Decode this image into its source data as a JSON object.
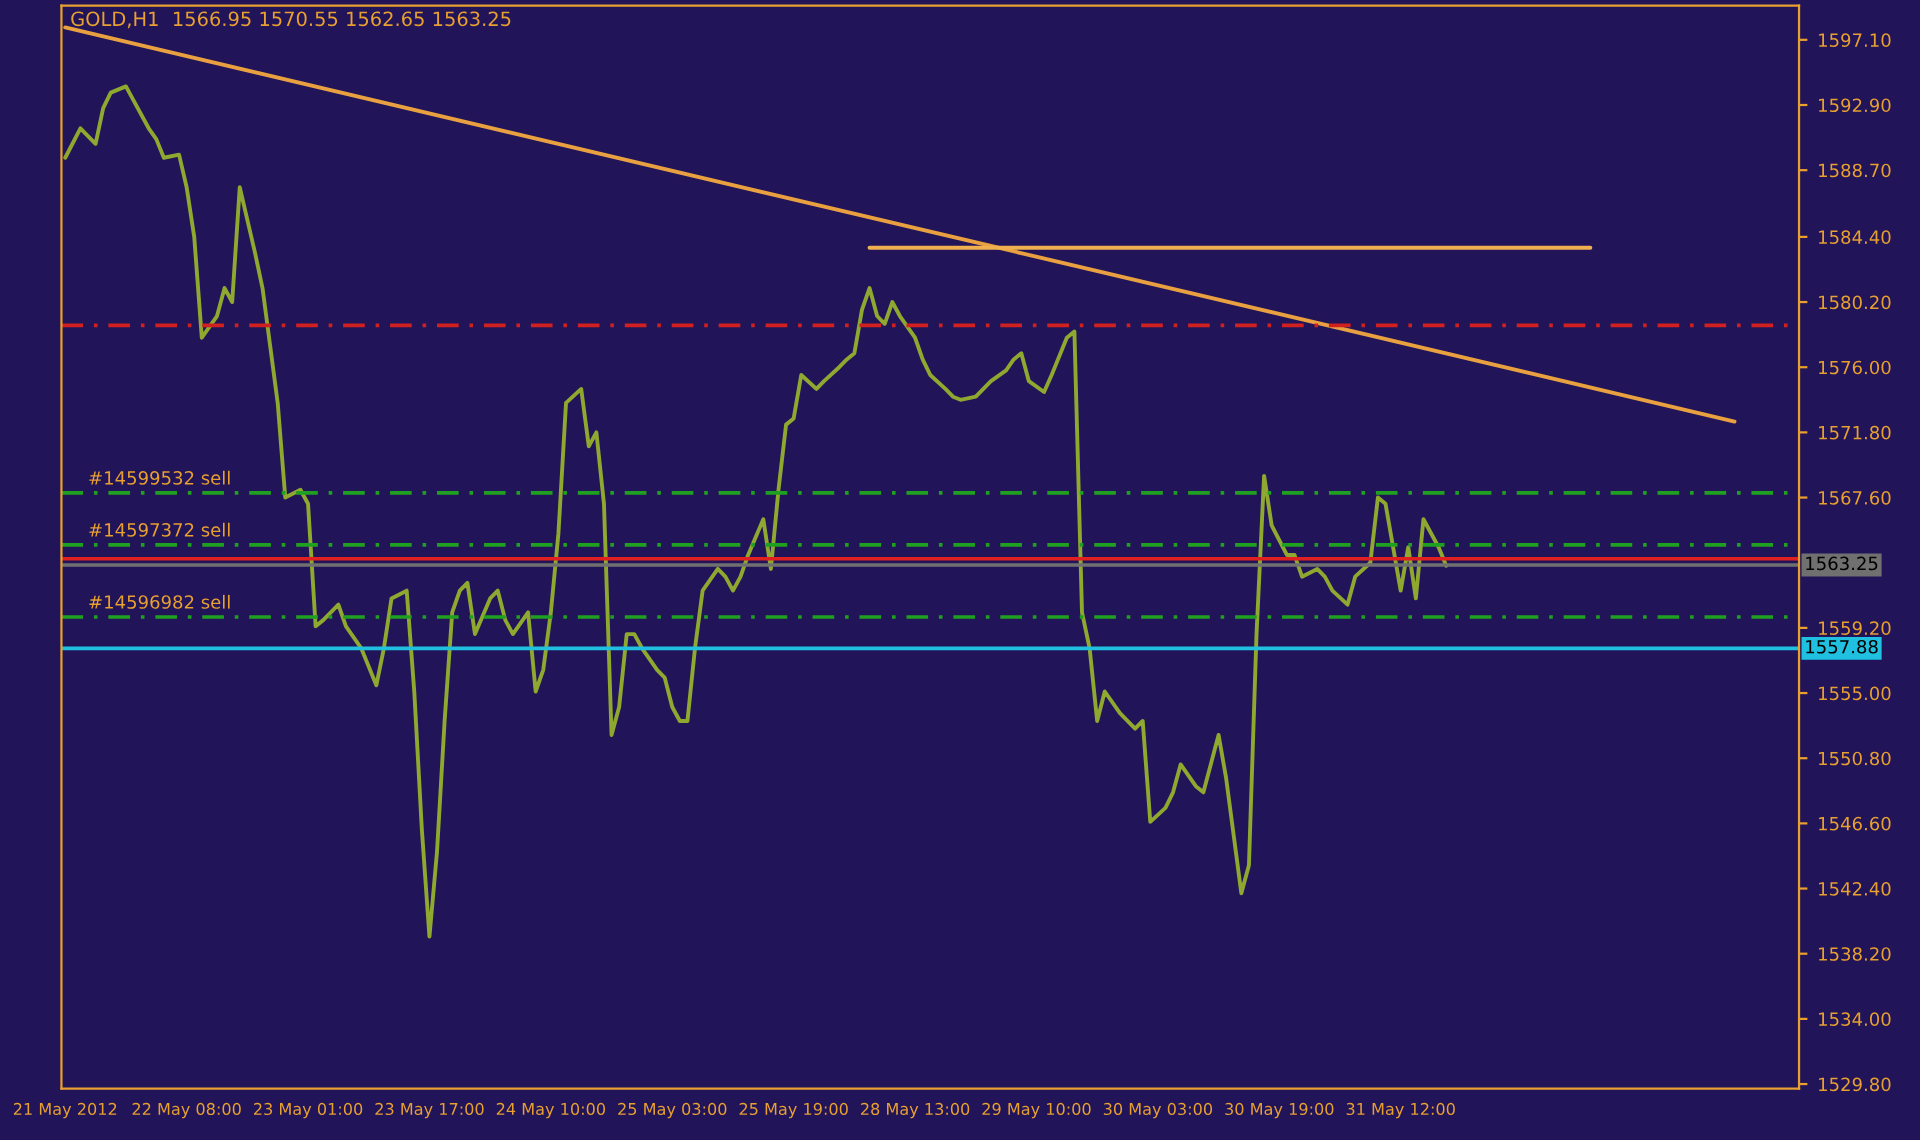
{
  "chart_data": {
    "type": "line",
    "title": "GOLD,H1  1566.95 1570.55 1562.65 1563.25",
    "categories": [
      "21 May 2012",
      null,
      null,
      null,
      null,
      null,
      null,
      null,
      null,
      null,
      null,
      null,
      null,
      null,
      null,
      null,
      "22 May 08:00",
      null,
      null,
      null,
      null,
      null,
      null,
      null,
      null,
      null,
      null,
      null,
      null,
      null,
      null,
      null,
      "23 May 01:00",
      null,
      null,
      null,
      null,
      null,
      null,
      null,
      null,
      null,
      null,
      null,
      null,
      null,
      null,
      null,
      "23 May 17:00",
      null,
      null,
      null,
      null,
      null,
      null,
      null,
      null,
      null,
      null,
      null,
      null,
      null,
      null,
      null,
      "24 May 10:00",
      null,
      null,
      null,
      null,
      null,
      null,
      null,
      null,
      null,
      null,
      null,
      null,
      null,
      null,
      null,
      "25 May 03:00",
      null,
      null,
      null,
      null,
      null,
      null,
      null,
      null,
      null,
      null,
      null,
      null,
      null,
      null,
      null,
      "25 May 19:00",
      null,
      null,
      null,
      null,
      null,
      null,
      null,
      null,
      null,
      null,
      null,
      null,
      null,
      null,
      null,
      "28 May 13:00",
      null,
      null,
      null,
      null,
      null,
      null,
      null,
      null,
      null,
      null,
      null,
      null,
      null,
      null,
      null,
      "29 May 10:00",
      null,
      null,
      null,
      null,
      null,
      null,
      null,
      null,
      null,
      null,
      null,
      null,
      null,
      null,
      null,
      "30 May 03:00",
      null,
      null,
      null,
      null,
      null,
      null,
      null,
      null,
      null,
      null,
      null,
      null,
      null,
      null,
      null,
      "30 May 19:00",
      null,
      null,
      null,
      null,
      null,
      null,
      null,
      null,
      null,
      null,
      null,
      null,
      null,
      null,
      null,
      "31 May 12:00",
      null,
      null,
      null,
      null,
      null,
      null,
      null,
      null,
      null,
      null,
      null,
      null,
      null,
      null,
      null,
      null,
      null,
      null,
      null,
      null,
      null,
      null,
      null,
      null,
      null,
      null,
      null,
      null,
      null,
      null,
      null,
      null,
      null,
      null,
      null,
      null,
      null,
      null,
      null,
      null,
      null,
      null,
      null,
      null,
      null,
      null,
      null,
      null,
      null,
      null,
      null,
      null
    ],
    "ylim": [
      1529.5,
      1599.3
    ],
    "yticks": [
      {
        "value": 1597.1,
        "label": "1597.10"
      },
      {
        "value": 1592.9,
        "label": "1592.90"
      },
      {
        "value": 1588.7,
        "label": "1588.70"
      },
      {
        "value": 1584.4,
        "label": "1584.40"
      },
      {
        "value": 1580.2,
        "label": "1580.20"
      },
      {
        "value": 1576.0,
        "label": "1576.00"
      },
      {
        "value": 1571.8,
        "label": "1571.80"
      },
      {
        "value": 1567.6,
        "label": "1567.60"
      },
      {
        "value": 1559.2,
        "label": "1559.20"
      },
      {
        "value": 1555.0,
        "label": "1555.00"
      },
      {
        "value": 1550.8,
        "label": "1550.80"
      },
      {
        "value": 1546.6,
        "label": "1546.60"
      },
      {
        "value": 1542.4,
        "label": "1542.40"
      },
      {
        "value": 1538.2,
        "label": "1538.20"
      },
      {
        "value": 1534.0,
        "label": "1534.00"
      },
      {
        "value": 1529.8,
        "label": "1529.80"
      }
    ],
    "grid": false,
    "marker": "none",
    "line_style": "solid",
    "series": [
      {
        "color": "#8fa830",
        "values": [
          1589.5,
          null,
          1591.4,
          null,
          1590.4,
          1592.7,
          1593.7,
          null,
          1594.1,
          1593.2,
          null,
          1591.4,
          1590.7,
          1589.5,
          null,
          1589.7,
          1587.6,
          1584.4,
          1577.9,
          null,
          1579.3,
          1581.1,
          1580.2,
          1587.6,
          null,
          1583.4,
          1581.1,
          1577.4,
          1573.7,
          1567.6,
          null,
          1568.1,
          1567.2,
          1559.3,
          1559.7,
          null,
          1560.7,
          1559.3,
          null,
          1557.9,
          null,
          1555.5,
          1557.9,
          1561.1,
          null,
          1561.6,
          1555.1,
          1546.2,
          1539.3,
          1544.8,
          1553.2,
          1560.2,
          1561.6,
          1562.1,
          1558.8,
          null,
          1561.1,
          1561.6,
          1559.7,
          1558.8,
          null,
          1560.2,
          1555.1,
          1556.5,
          1560.2,
          1565.3,
          1573.7,
          null,
          1574.6,
          1570.9,
          1571.8,
          1567.2,
          1552.3,
          1554.1,
          1558.8,
          1558.8,
          1557.9,
          null,
          1556.5,
          1556.0,
          1554.1,
          1553.2,
          1553.2,
          1557.9,
          1561.6,
          null,
          1563.0,
          1562.5,
          1561.6,
          1562.5,
          1563.9,
          null,
          1566.2,
          1563.0,
          1568.1,
          1572.3,
          1572.7,
          1575.5,
          null,
          1574.6,
          1575.1,
          null,
          1576.0,
          1576.5,
          1576.9,
          1579.7,
          1581.1,
          1579.3,
          1578.8,
          1580.2,
          1579.3,
          null,
          1577.9,
          1576.5,
          1575.5,
          null,
          1574.6,
          1574.1,
          1573.9,
          null,
          1574.1,
          1574.6,
          1575.1,
          null,
          1575.8,
          1576.5,
          1576.9,
          1575.1,
          null,
          1574.4,
          1575.5,
          null,
          1577.9,
          1578.3,
          1560.2,
          1557.9,
          1553.2,
          1555.1,
          null,
          1553.7,
          null,
          1552.7,
          1553.2,
          1546.7,
          null,
          1547.6,
          1548.6,
          1550.4,
          null,
          1549.0,
          1548.6,
          null,
          1552.3,
          1549.5,
          null,
          1542.1,
          1543.9,
          1558.8,
          1569.0,
          1565.8,
          null,
          1563.9,
          1563.9,
          1562.5,
          null,
          1563.0,
          1562.5,
          1561.6,
          null,
          1560.7,
          1562.5,
          null,
          1563.4,
          1567.6,
          1567.2,
          1564.4,
          1561.6,
          1564.4,
          1561.1,
          1566.2,
          null,
          1564.4,
          1563.2,
          null,
          null,
          null,
          null,
          null,
          null,
          null,
          null,
          null,
          null,
          null,
          null,
          null,
          null,
          null,
          null,
          null,
          null,
          null,
          null,
          null,
          null,
          null,
          null,
          null,
          null,
          null,
          null,
          null,
          null,
          null,
          null,
          null,
          null,
          null,
          null,
          null,
          null,
          null,
          null,
          null,
          null,
          null,
          null,
          null,
          null
        ]
      },
      {
        "type": "line",
        "color": "#e8a040",
        "values": [
          1597.9,
          null,
          null,
          null,
          null,
          null,
          null,
          null,
          null,
          null,
          null,
          null,
          null,
          null,
          null,
          null,
          null,
          null,
          null,
          null,
          null,
          null,
          null,
          null,
          null,
          null,
          null,
          null,
          null,
          null,
          null,
          null,
          null,
          null,
          null,
          null,
          null,
          null,
          null,
          null,
          null,
          null,
          null,
          null,
          null,
          null,
          null,
          null,
          null,
          null,
          null,
          null,
          null,
          null,
          null,
          null,
          null,
          null,
          null,
          null,
          null,
          null,
          null,
          null,
          null,
          null,
          null,
          null,
          null,
          null,
          null,
          null,
          null,
          null,
          null,
          null,
          null,
          null,
          null,
          null,
          null,
          null,
          null,
          null,
          null,
          null,
          null,
          null,
          null,
          null,
          null,
          null,
          null,
          null,
          null,
          null,
          null,
          null,
          null,
          null,
          null,
          null,
          null,
          null,
          null,
          null,
          null,
          null,
          null,
          null,
          null,
          null,
          null,
          null,
          null,
          null,
          null,
          null,
          null,
          null,
          null,
          null,
          null,
          null,
          null,
          null,
          null,
          null,
          null,
          null,
          null,
          null,
          null,
          null,
          null,
          null,
          null,
          null,
          null,
          null,
          null,
          null,
          null,
          null,
          null,
          null,
          null,
          null,
          null,
          null,
          null,
          null,
          null,
          null,
          null,
          null,
          null,
          null,
          null,
          null,
          null,
          null,
          null,
          null,
          null,
          null,
          null,
          null,
          null,
          null,
          null,
          null,
          null,
          null,
          null,
          null,
          null,
          null,
          null,
          null,
          null,
          null,
          null,
          null,
          null,
          null,
          null,
          null,
          null,
          null,
          null,
          null,
          null,
          null,
          null,
          null,
          null,
          null,
          null,
          null,
          null,
          null,
          null,
          null,
          null,
          null,
          null,
          null,
          null,
          null,
          null,
          null,
          null,
          null,
          null,
          null,
          null,
          null,
          null,
          null,
          1572.5,
          null,
          null,
          null,
          null,
          null,
          null,
          null,
          null
        ]
      },
      {
        "type": "line",
        "color": "#f0b050",
        "values": [
          null,
          null,
          null,
          null,
          null,
          null,
          null,
          null,
          null,
          null,
          null,
          null,
          null,
          null,
          null,
          null,
          null,
          null,
          null,
          null,
          null,
          null,
          null,
          null,
          null,
          null,
          null,
          null,
          null,
          null,
          null,
          null,
          null,
          null,
          null,
          null,
          null,
          null,
          null,
          null,
          null,
          null,
          null,
          null,
          null,
          null,
          null,
          null,
          null,
          null,
          null,
          null,
          null,
          null,
          null,
          null,
          null,
          null,
          null,
          null,
          null,
          null,
          null,
          null,
          null,
          null,
          null,
          null,
          null,
          null,
          null,
          null,
          null,
          null,
          null,
          null,
          null,
          null,
          null,
          null,
          null,
          null,
          null,
          null,
          null,
          null,
          null,
          null,
          null,
          null,
          null,
          null,
          null,
          null,
          null,
          null,
          null,
          null,
          null,
          null,
          null,
          null,
          null,
          null,
          null,
          null,
          1583.7,
          null,
          null,
          null,
          null,
          null,
          null,
          null,
          null,
          null,
          null,
          null,
          null,
          null,
          null,
          null,
          null,
          null,
          null,
          null,
          null,
          null,
          null,
          null,
          null,
          null,
          null,
          null,
          null,
          null,
          null,
          null,
          null,
          null,
          null,
          null,
          null,
          null,
          null,
          null,
          null,
          null,
          null,
          null,
          null,
          null,
          null,
          null,
          null,
          null,
          null,
          null,
          null,
          null,
          null,
          null,
          null,
          null,
          null,
          null,
          null,
          null,
          null,
          null,
          null,
          null,
          null,
          null,
          null,
          null,
          null,
          null,
          null,
          null,
          null,
          null,
          null,
          null,
          null,
          null,
          null,
          null,
          null,
          null,
          null,
          null,
          null,
          null,
          null,
          null,
          null,
          null,
          null,
          null,
          null,
          1583.7,
          null,
          null,
          null,
          null,
          null,
          null,
          null,
          null,
          null,
          null,
          null,
          null,
          null,
          null,
          null,
          null,
          null,
          null,
          null,
          null,
          null,
          null,
          null,
          null,
          null,
          null,
          null
        ]
      }
    ],
    "ref_lines": [
      {
        "axis": "y",
        "value": 1578.7,
        "color": "#d02020",
        "line_style": "dashed"
      },
      {
        "axis": "y",
        "value": 1567.9,
        "label": "#14599532 sell",
        "color": "#20a020",
        "line_style": "dashed"
      },
      {
        "axis": "y",
        "value": 1564.55,
        "label": "#14597372 sell",
        "color": "#20a020",
        "line_style": "dashed"
      },
      {
        "axis": "y",
        "value": 1559.9,
        "label": "#14596982 sell",
        "color": "#20a020",
        "line_style": "dashed"
      },
      {
        "axis": "y",
        "value": 1563.66,
        "color": "#e02020",
        "line_style": "solid"
      },
      {
        "axis": "y",
        "value": 1563.25,
        "label": "1563.25",
        "color": "#707070",
        "line_style": "solid"
      },
      {
        "axis": "y",
        "value": 1557.88,
        "label": "1557.88",
        "color": "#20c0e0",
        "line_style": "solid"
      }
    ]
  }
}
